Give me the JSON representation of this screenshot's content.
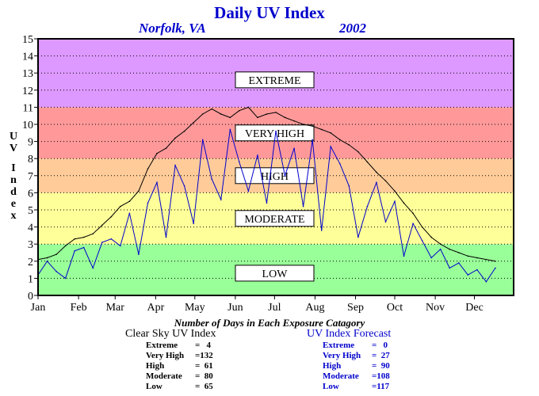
{
  "chart_data": {
    "type": "line",
    "title": "Daily UV Index",
    "location": "Norfolk, VA",
    "year": "2002",
    "ylabel": "UV Index",
    "ylim": [
      0,
      15
    ],
    "yticks": [
      "0",
      "1",
      "2",
      "3",
      "4",
      "5",
      "6",
      "7",
      "8",
      "9",
      "10",
      "11",
      "12",
      "13",
      "14",
      "15"
    ],
    "xlim": [
      1,
      365
    ],
    "xtick_labels": [
      "Jan",
      "Feb",
      "Mar",
      "Apr",
      "May",
      "Jun",
      "Jul",
      "Aug",
      "Sep",
      "Oct",
      "Nov",
      "Dec"
    ],
    "xtick_days": [
      1,
      32,
      60,
      91,
      121,
      152,
      182,
      213,
      244,
      274,
      305,
      335
    ],
    "grid": "dotted-horizontal",
    "bands": [
      {
        "label": "LOW",
        "from": 0,
        "to": 3,
        "color": "#99ff99",
        "label_y": 1.3
      },
      {
        "label": "MODERATE",
        "from": 3,
        "to": 6,
        "color": "#ffff99",
        "label_y": 4.5
      },
      {
        "label": "HIGH",
        "from": 6,
        "to": 8,
        "color": "#ffcc99",
        "label_y": 7
      },
      {
        "label": "VERY HIGH",
        "from": 8,
        "to": 11,
        "color": "#ff9999",
        "label_y": 9.5
      },
      {
        "label": "EXTREME",
        "from": 11,
        "to": 15,
        "color": "#dd99ff",
        "label_y": 12.6
      }
    ],
    "series": [
      {
        "id": "clear-sky",
        "color": "#000000",
        "x": [
          1,
          8,
          15,
          22,
          29,
          36,
          43,
          50,
          57,
          64,
          71,
          78,
          85,
          92,
          99,
          106,
          113,
          120,
          127,
          134,
          141,
          148,
          155,
          162,
          169,
          176,
          183,
          190,
          197,
          204,
          211,
          218,
          225,
          232,
          239,
          246,
          253,
          260,
          267,
          274,
          281,
          288,
          295,
          302,
          309,
          316,
          323,
          330,
          337,
          344,
          351
        ],
        "y": [
          2.1,
          2.2,
          2.4,
          2.9,
          3.3,
          3.4,
          3.6,
          4.1,
          4.6,
          5.2,
          5.5,
          6.1,
          7.4,
          8.3,
          8.6,
          9.2,
          9.6,
          10.1,
          10.6,
          10.9,
          10.6,
          10.4,
          10.8,
          11.0,
          10.4,
          10.6,
          10.7,
          10.4,
          10.2,
          10.0,
          9.9,
          9.7,
          9.5,
          9.1,
          8.8,
          8.4,
          7.8,
          7.2,
          6.7,
          6.1,
          5.4,
          4.8,
          4.0,
          3.4,
          3.0,
          2.7,
          2.5,
          2.3,
          2.2,
          2.1,
          2.0
        ]
      },
      {
        "id": "forecast",
        "color": "#0000cc",
        "x": [
          1,
          8,
          15,
          22,
          29,
          36,
          43,
          50,
          57,
          64,
          71,
          78,
          85,
          92,
          99,
          106,
          113,
          120,
          127,
          134,
          141,
          148,
          155,
          162,
          169,
          176,
          183,
          190,
          197,
          204,
          211,
          218,
          225,
          232,
          239,
          246,
          253,
          260,
          267,
          274,
          281,
          288,
          295,
          302,
          309,
          316,
          323,
          330,
          337,
          344,
          351
        ],
        "y": [
          1.2,
          2.0,
          1.4,
          1.0,
          2.6,
          2.8,
          1.6,
          3.1,
          3.3,
          2.9,
          4.8,
          2.4,
          5.4,
          6.6,
          3.4,
          7.6,
          6.4,
          4.2,
          9.1,
          6.8,
          5.6,
          9.7,
          7.8,
          6.1,
          8.2,
          5.4,
          9.6,
          7.0,
          8.6,
          5.2,
          9.1,
          3.8,
          8.7,
          7.7,
          6.4,
          3.4,
          5.2,
          6.6,
          4.3,
          5.5,
          2.3,
          4.2,
          3.2,
          2.2,
          2.7,
          1.6,
          1.9,
          1.2,
          1.5,
          0.8,
          1.6
        ]
      }
    ]
  },
  "stats": {
    "heading": "Number of Days in Each Exposure Catagory",
    "clear": {
      "title": "Clear Sky UV Index",
      "rows": [
        {
          "label": "Extreme",
          "value": "=   4"
        },
        {
          "label": "Very High",
          "value": "=132"
        },
        {
          "label": "High",
          "value": "=  61"
        },
        {
          "label": "Moderate",
          "value": "=  80"
        },
        {
          "label": "Low",
          "value": "=  65"
        }
      ]
    },
    "forecast": {
      "title": "UV Index Forecast",
      "rows": [
        {
          "label": "Extreme",
          "value": "=   0"
        },
        {
          "label": "Very High",
          "value": "=  27"
        },
        {
          "label": "High",
          "value": "=  90"
        },
        {
          "label": "Moderate",
          "value": "=108"
        },
        {
          "label": "Low",
          "value": "=117"
        }
      ]
    }
  }
}
